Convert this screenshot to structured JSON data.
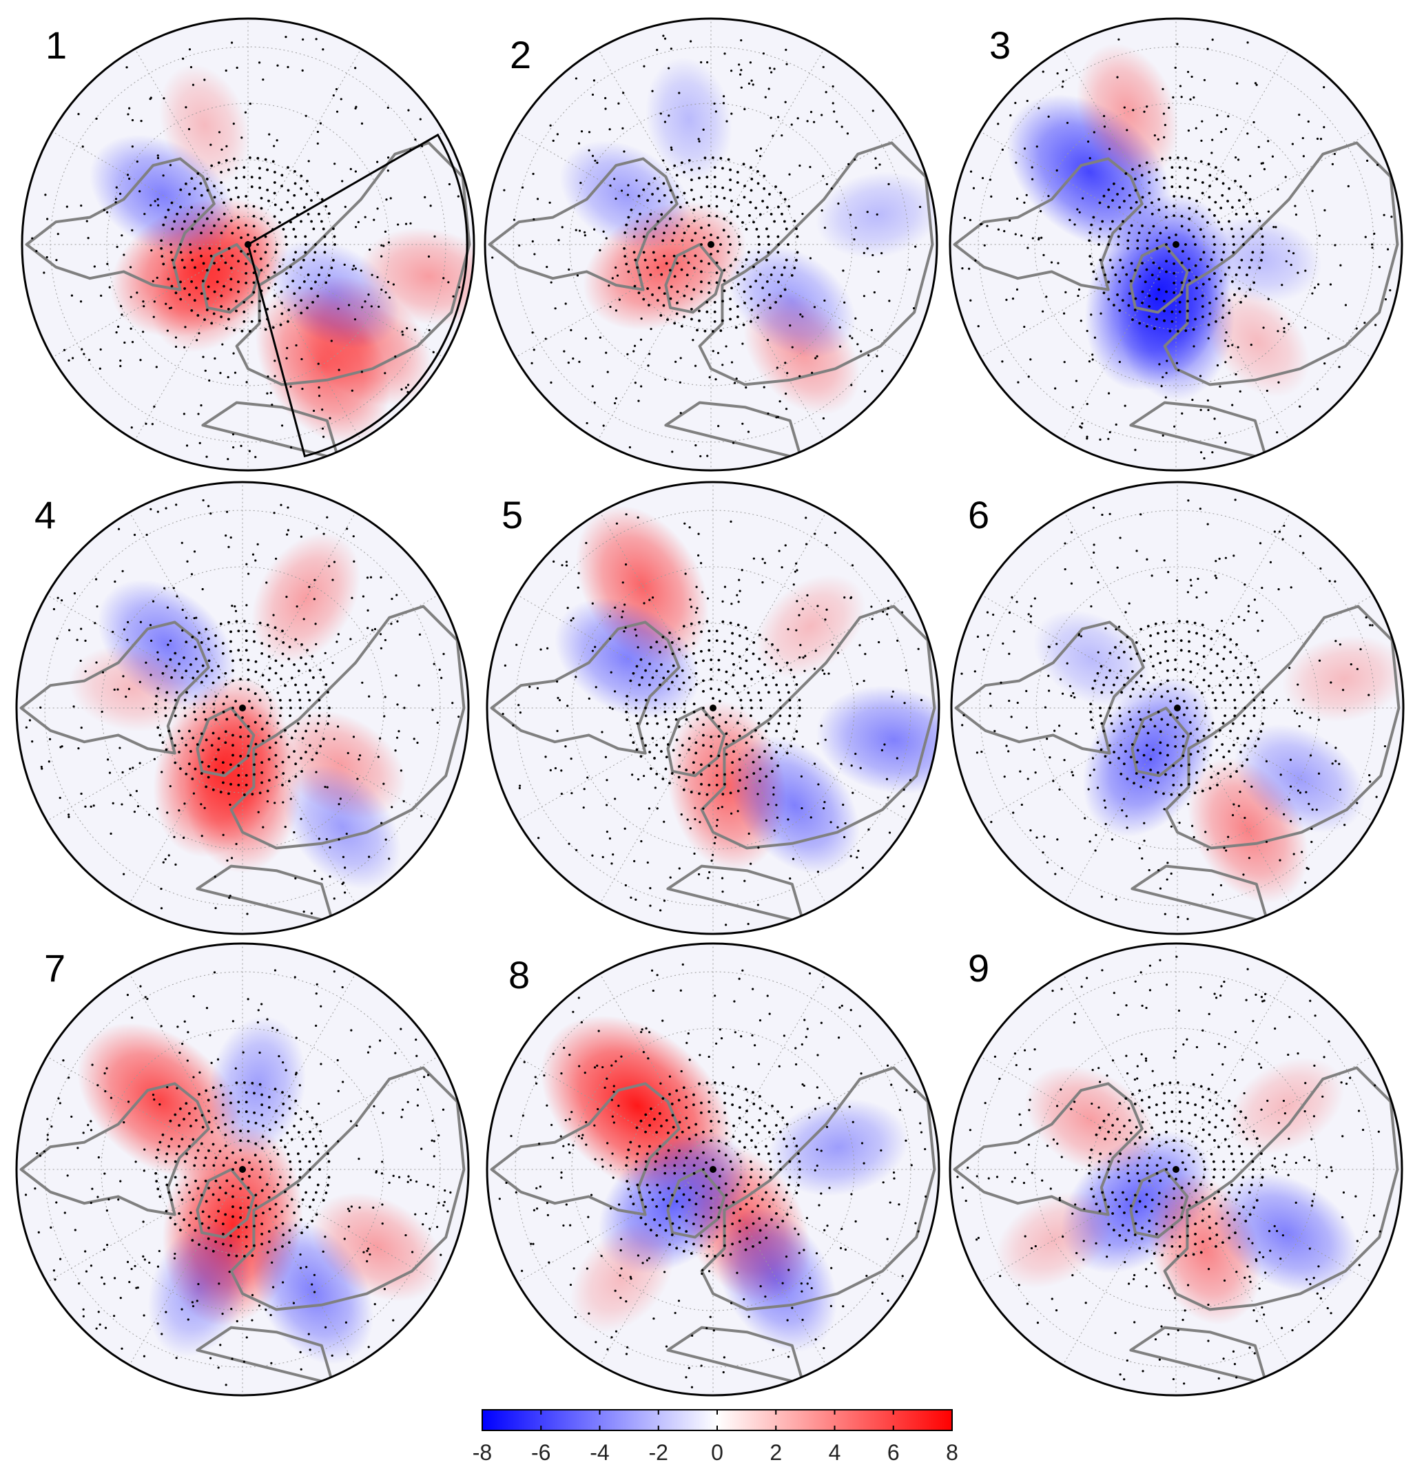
{
  "figure": {
    "panels": [
      {
        "label": "1",
        "sector_outline": true,
        "anomalies": [
          {
            "lon": 65,
            "lat": 71,
            "v": 6
          },
          {
            "lon": 40,
            "lat": 72,
            "v": 4
          },
          {
            "lon": -32,
            "lat": 40,
            "v": 5
          },
          {
            "lon": -50,
            "lat": 37,
            "v": 4
          },
          {
            "lon": -60,
            "lat": 55,
            "v": -3
          },
          {
            "lon": 120,
            "lat": 55,
            "v": -4
          },
          {
            "lon": 160,
            "lat": 45,
            "v": 2
          },
          {
            "lon": -80,
            "lat": 25,
            "v": 3
          }
        ]
      },
      {
        "label": "2",
        "sector_outline": false,
        "anomalies": [
          {
            "lon": 65,
            "lat": 72,
            "v": 5
          },
          {
            "lon": -40,
            "lat": 40,
            "v": 3
          },
          {
            "lon": -55,
            "lat": 55,
            "v": -3
          },
          {
            "lon": 120,
            "lat": 55,
            "v": -3
          },
          {
            "lon": 170,
            "lat": 45,
            "v": -2
          },
          {
            "lon": -100,
            "lat": 30,
            "v": -2
          }
        ]
      },
      {
        "label": "3",
        "sector_outline": false,
        "anomalies": [
          {
            "lon": 20,
            "lat": 72,
            "v": -7
          },
          {
            "lon": 0,
            "lat": 65,
            "v": -5
          },
          {
            "lon": -40,
            "lat": 45,
            "v": 2
          },
          {
            "lon": 130,
            "lat": 50,
            "v": -6
          },
          {
            "lon": 160,
            "lat": 40,
            "v": 3
          },
          {
            "lon": -80,
            "lat": 60,
            "v": -2
          }
        ]
      },
      {
        "label": "4",
        "sector_outline": false,
        "anomalies": [
          {
            "lon": 20,
            "lat": 68,
            "v": 6
          },
          {
            "lon": 0,
            "lat": 62,
            "v": 5
          },
          {
            "lon": -60,
            "lat": 50,
            "v": 3
          },
          {
            "lon": -40,
            "lat": 35,
            "v": -3
          },
          {
            "lon": 130,
            "lat": 55,
            "v": -4
          },
          {
            "lon": -150,
            "lat": 45,
            "v": 3
          },
          {
            "lon": 100,
            "lat": 50,
            "v": 2
          }
        ]
      },
      {
        "label": "5",
        "sector_outline": false,
        "anomalies": [
          {
            "lon": -10,
            "lat": 62,
            "v": 5
          },
          {
            "lon": -40,
            "lat": 45,
            "v": -4
          },
          {
            "lon": 150,
            "lat": 40,
            "v": 5
          },
          {
            "lon": 120,
            "lat": 55,
            "v": -4
          },
          {
            "lon": -80,
            "lat": 25,
            "v": -4
          },
          {
            "lon": -130,
            "lat": 45,
            "v": 2
          }
        ]
      },
      {
        "label": "6",
        "sector_outline": false,
        "anomalies": [
          {
            "lon": 30,
            "lat": 70,
            "v": -5
          },
          {
            "lon": -30,
            "lat": 40,
            "v": 4
          },
          {
            "lon": -60,
            "lat": 40,
            "v": -3
          },
          {
            "lon": 120,
            "lat": 55,
            "v": -2
          },
          {
            "lon": -100,
            "lat": 30,
            "v": 2
          }
        ]
      },
      {
        "label": "7",
        "sector_outline": false,
        "anomalies": [
          {
            "lon": 10,
            "lat": 70,
            "v": 7
          },
          {
            "lon": -30,
            "lat": 40,
            "v": -4
          },
          {
            "lon": 130,
            "lat": 52,
            "v": 6
          },
          {
            "lon": -60,
            "lat": 35,
            "v": 3
          },
          {
            "lon": 20,
            "lat": 45,
            "v": -3
          },
          {
            "lon": -170,
            "lat": 60,
            "v": -3
          }
        ]
      },
      {
        "label": "8",
        "sector_outline": false,
        "anomalies": [
          {
            "lon": 130,
            "lat": 55,
            "v": 8
          },
          {
            "lon": -30,
            "lat": 68,
            "v": 5
          },
          {
            "lon": 50,
            "lat": 72,
            "v": -5
          },
          {
            "lon": -30,
            "lat": 45,
            "v": -4
          },
          {
            "lon": -100,
            "lat": 45,
            "v": -3
          },
          {
            "lon": 40,
            "lat": 40,
            "v": 2
          }
        ]
      },
      {
        "label": "9",
        "sector_outline": false,
        "anomalies": [
          {
            "lon": 50,
            "lat": 72,
            "v": -5
          },
          {
            "lon": -20,
            "lat": 60,
            "v": 4
          },
          {
            "lon": -60,
            "lat": 45,
            "v": -4
          },
          {
            "lon": 120,
            "lat": 55,
            "v": 3
          },
          {
            "lon": 60,
            "lat": 40,
            "v": 2
          },
          {
            "lon": -120,
            "lat": 45,
            "v": 2
          }
        ]
      }
    ]
  },
  "colorbar": {
    "min": -8,
    "max": 8,
    "low_color": "#0000ff",
    "mid_color": "#ffffff",
    "high_color": "#ff0000",
    "ticks": [
      "-8",
      "-6",
      "-4",
      "-2",
      "0",
      "2",
      "4",
      "6",
      "8"
    ]
  },
  "colors": {
    "coastline": "#808080",
    "graticule": "#9a9a9a",
    "outline": "#000000",
    "stipple": "#000000"
  }
}
